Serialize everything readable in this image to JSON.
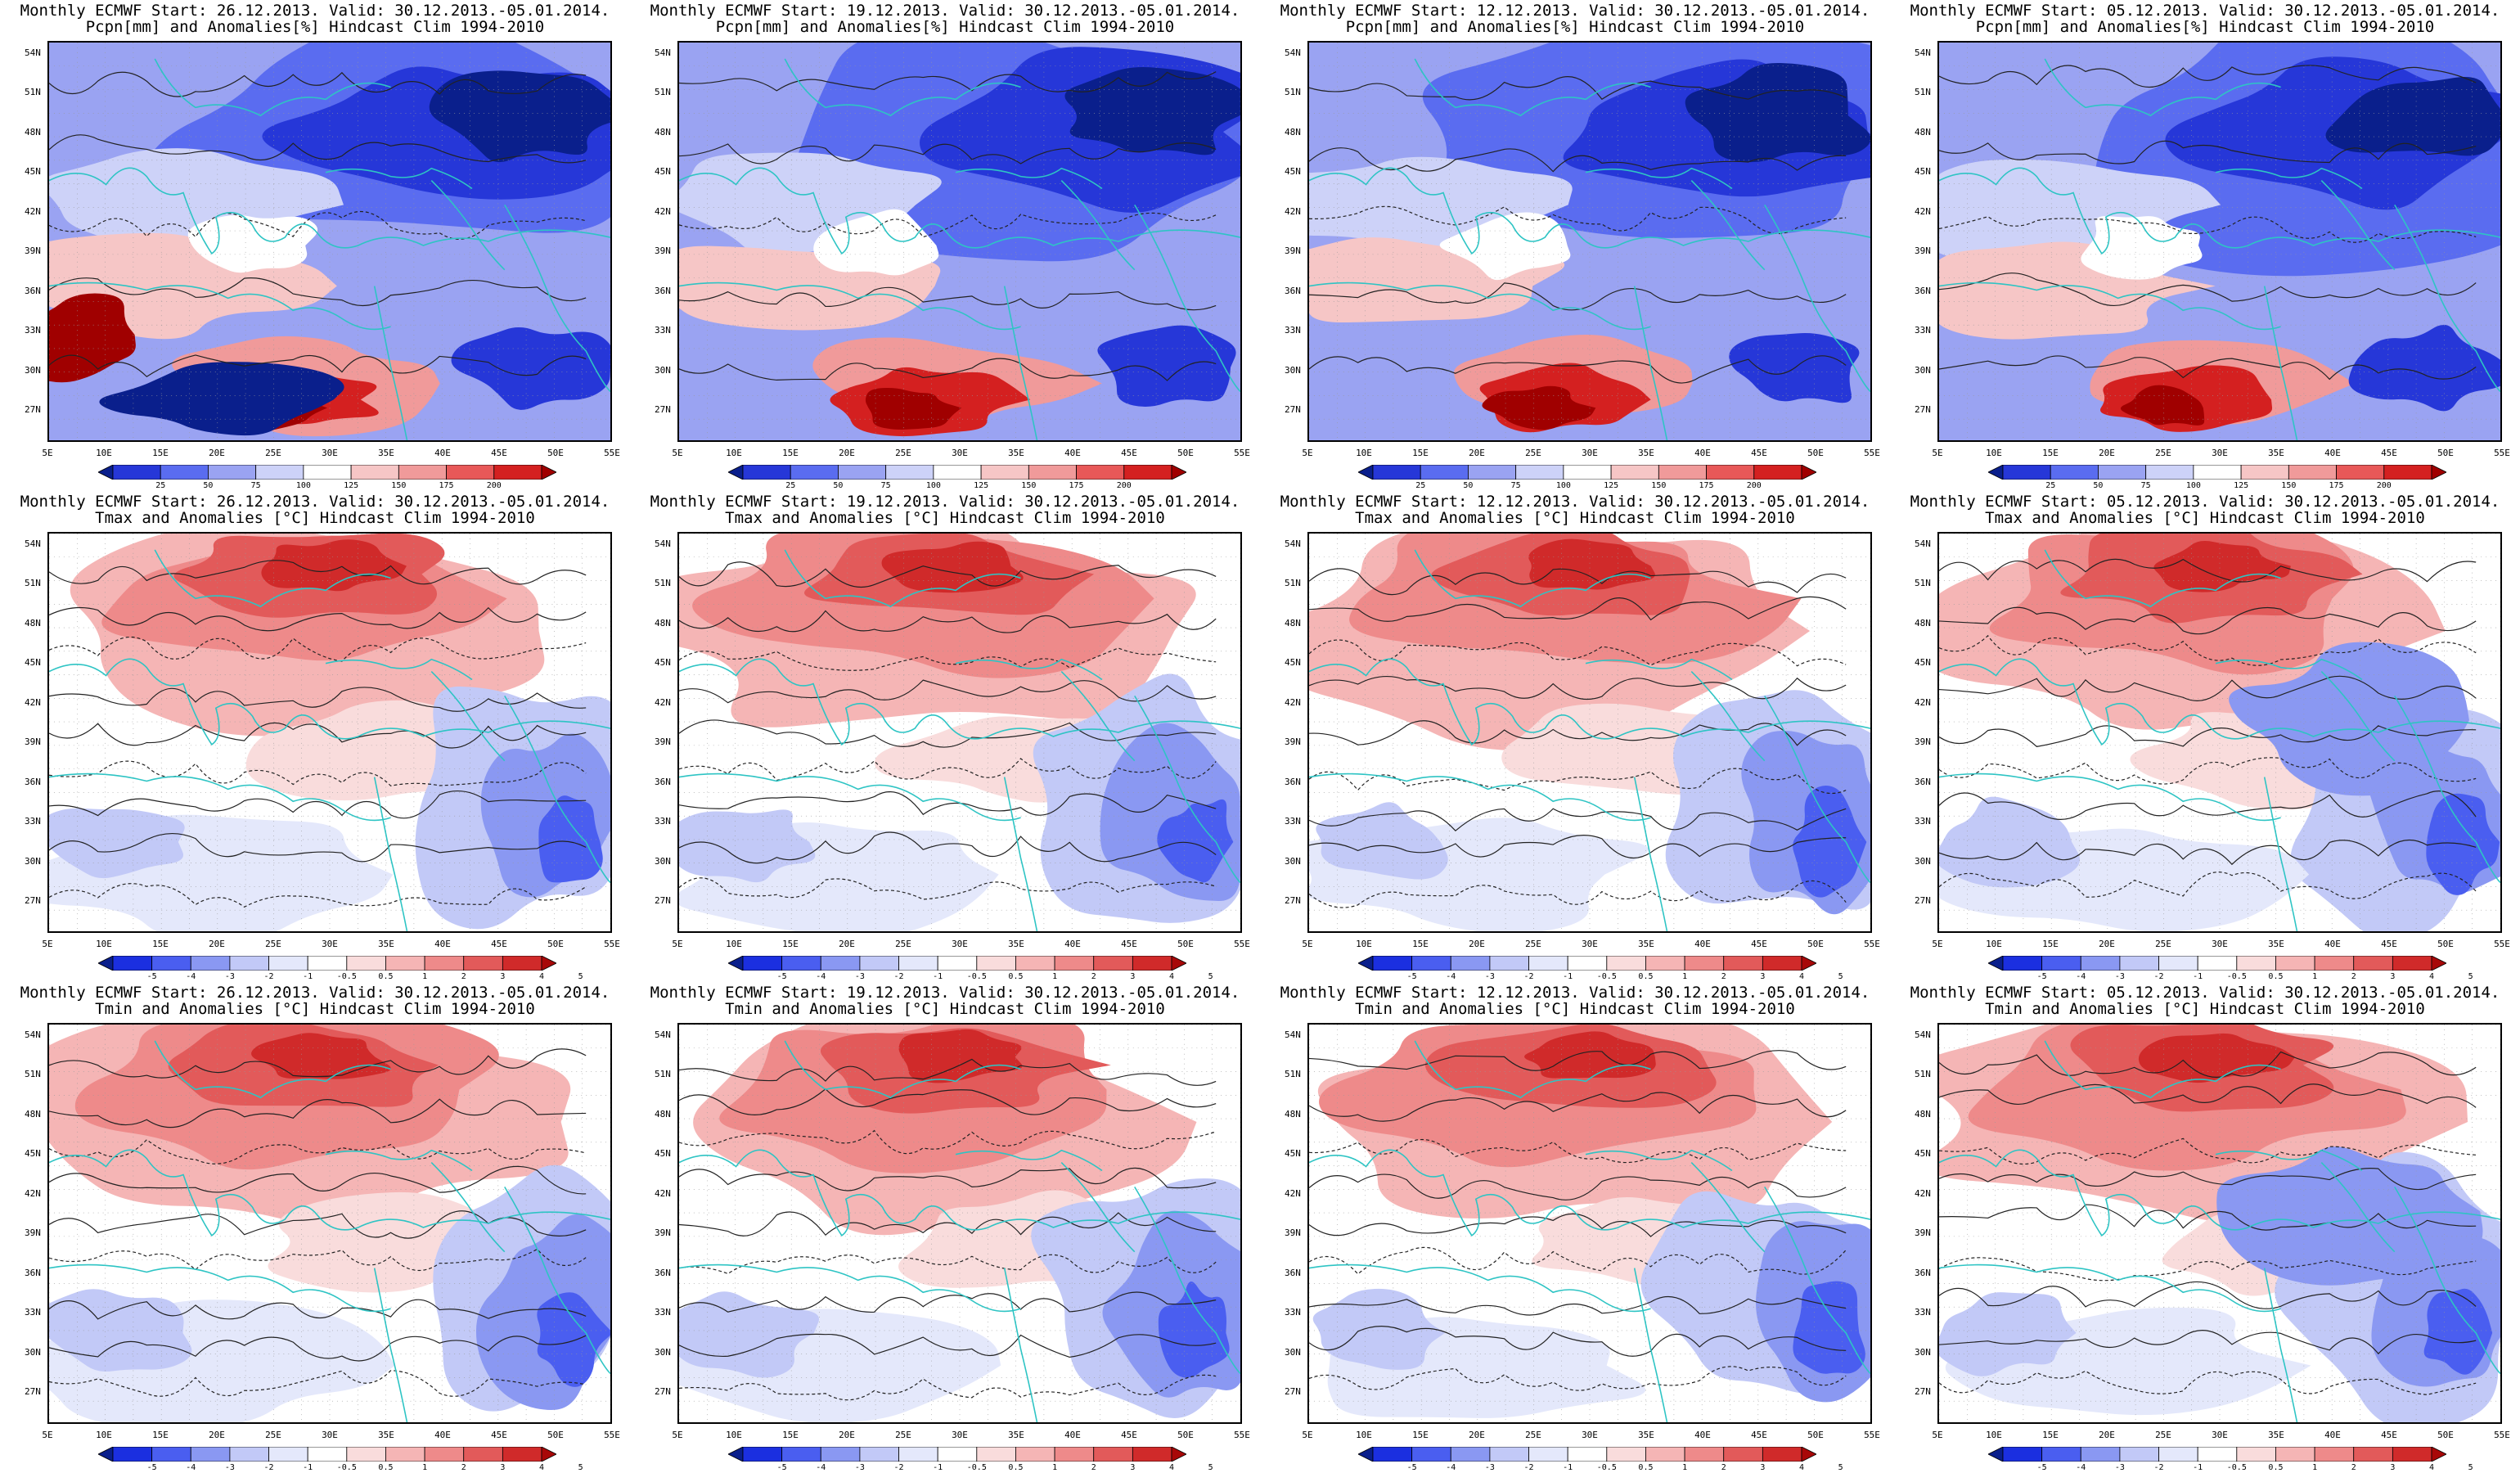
{
  "colors": {
    "precip": [
      "#0a1f8c",
      "#2637d8",
      "#5a6cf0",
      "#9aa3f2",
      "#cdd2f8",
      "#ffffff",
      "#f6c6c6",
      "#f09a9a",
      "#e85858",
      "#d42020",
      "#a00000"
    ],
    "temp": [
      "#0a1f8c",
      "#1b2fe0",
      "#4a5ef0",
      "#8a98f2",
      "#c2c9f7",
      "#e4e8fb",
      "#ffffff",
      "#f9dcdc",
      "#f5b5b5",
      "#ee8a8a",
      "#e25a5a",
      "#d02a2a",
      "#a80808"
    ],
    "coast": "#2ec4c4"
  },
  "ylabels": [
    "54N",
    "51N",
    "48N",
    "45N",
    "42N",
    "39N",
    "36N",
    "33N",
    "30N",
    "27N"
  ],
  "xlabels": [
    "5E",
    "10E",
    "15E",
    "20E",
    "25E",
    "30E",
    "35E",
    "40E",
    "45E",
    "50E",
    "55E"
  ],
  "precip_ticks": [
    "25",
    "50",
    "75",
    "100",
    "125",
    "150",
    "175",
    "200"
  ],
  "temp_ticks": [
    "-5",
    "-4",
    "-3",
    "-2",
    "-1",
    "-0.5",
    "0.5",
    "1",
    "2",
    "3",
    "4",
    "5"
  ],
  "panels": [
    {
      "line1": "Monthly ECMWF Start: 26.12.2013. Valid: 30.12.2013.-05.01.2014.",
      "line2": "Pcpn[mm] and Anomalies[%] Hindcast Clim 1994-2010",
      "kind": "precip"
    },
    {
      "line1": "Monthly ECMWF Start: 19.12.2013. Valid: 30.12.2013.-05.01.2014.",
      "line2": "Pcpn[mm] and Anomalies[%] Hindcast Clim 1994-2010",
      "kind": "precip"
    },
    {
      "line1": "Monthly ECMWF Start: 12.12.2013. Valid: 30.12.2013.-05.01.2014.",
      "line2": "Pcpn[mm] and Anomalies[%] Hindcast Clim 1994-2010",
      "kind": "precip"
    },
    {
      "line1": "Monthly ECMWF Start: 05.12.2013. Valid: 30.12.2013.-05.01.2014.",
      "line2": "Pcpn[mm] and Anomalies[%] Hindcast Clim 1994-2010",
      "kind": "precip"
    },
    {
      "line1": "Monthly ECMWF Start: 26.12.2013. Valid: 30.12.2013.-05.01.2014.",
      "line2": "Tmax and Anomalies [°C] Hindcast Clim 1994-2010",
      "kind": "temp"
    },
    {
      "line1": "Monthly ECMWF Start: 19.12.2013. Valid: 30.12.2013.-05.01.2014.",
      "line2": "Tmax and Anomalies [°C] Hindcast Clim 1994-2010",
      "kind": "temp"
    },
    {
      "line1": "Monthly ECMWF Start: 12.12.2013. Valid: 30.12.2013.-05.01.2014.",
      "line2": "Tmax and Anomalies [°C] Hindcast Clim 1994-2010",
      "kind": "temp"
    },
    {
      "line1": "Monthly ECMWF Start: 05.12.2013. Valid: 30.12.2013.-05.01.2014.",
      "line2": "Tmax and Anomalies [°C] Hindcast Clim 1994-2010",
      "kind": "temp"
    },
    {
      "line1": "Monthly ECMWF Start: 26.12.2013. Valid: 30.12.2013.-05.01.2014.",
      "line2": "Tmin and Anomalies [°C] Hindcast Clim 1994-2010",
      "kind": "temp"
    },
    {
      "line1": "Monthly ECMWF Start: 19.12.2013. Valid: 30.12.2013.-05.01.2014.",
      "line2": "Tmin and Anomalies [°C] Hindcast Clim 1994-2010",
      "kind": "temp"
    },
    {
      "line1": "Monthly ECMWF Start: 12.12.2013. Valid: 30.12.2013.-05.01.2014.",
      "line2": "Tmin and Anomalies [°C] Hindcast Clim 1994-2010",
      "kind": "temp"
    },
    {
      "line1": "Monthly ECMWF Start: 05.12.2013. Valid: 30.12.2013.-05.01.2014.",
      "line2": "Tmin and Anomalies [°C] Hindcast Clim 1994-2010",
      "kind": "temp"
    }
  ]
}
